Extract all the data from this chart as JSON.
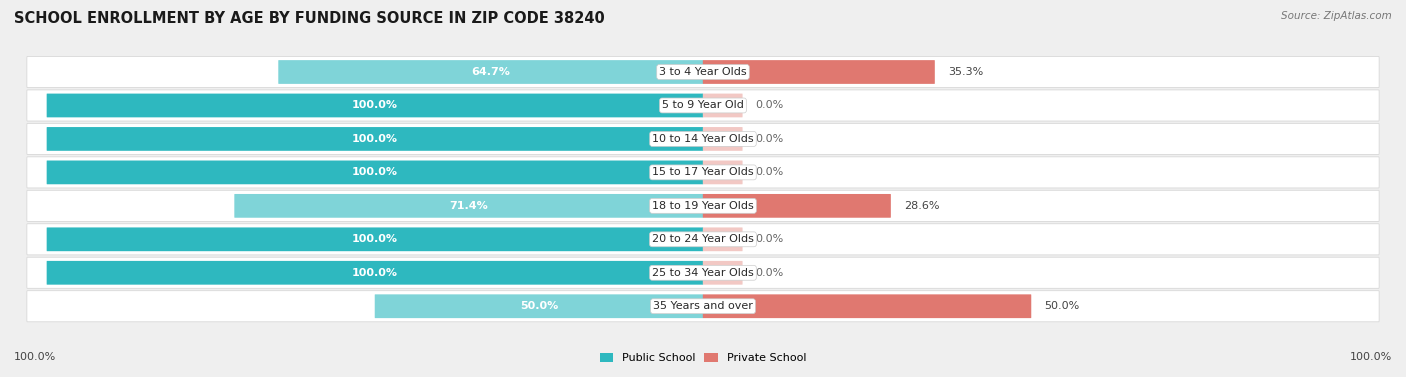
{
  "title": "SCHOOL ENROLLMENT BY AGE BY FUNDING SOURCE IN ZIP CODE 38240",
  "source": "Source: ZipAtlas.com",
  "categories": [
    "3 to 4 Year Olds",
    "5 to 9 Year Old",
    "10 to 14 Year Olds",
    "15 to 17 Year Olds",
    "18 to 19 Year Olds",
    "20 to 24 Year Olds",
    "25 to 34 Year Olds",
    "35 Years and over"
  ],
  "public_pct": [
    64.7,
    100.0,
    100.0,
    100.0,
    71.4,
    100.0,
    100.0,
    50.0
  ],
  "private_pct": [
    35.3,
    0.0,
    0.0,
    0.0,
    28.6,
    0.0,
    0.0,
    50.0
  ],
  "public_color_full": "#2eb8bf",
  "public_color_partial": "#7fd4d8",
  "private_color_full": "#e07870",
  "private_color_partial": "#f0aba6",
  "private_color_zero": "#f2c8c4",
  "bg_color": "#efefef",
  "row_bg_color": "#ffffff",
  "row_border_color": "#d8d8d8",
  "legend_public": "Public School",
  "legend_private": "Private School",
  "left_label": "100.0%",
  "right_label": "100.0%",
  "title_fontsize": 10.5,
  "source_fontsize": 7.5,
  "label_fontsize": 8.0,
  "category_fontsize": 8.0,
  "bar_label_fontsize": 8.0,
  "bar_height": 0.65,
  "xlim_left": -105,
  "xlim_right": 105,
  "max_bar": 100
}
